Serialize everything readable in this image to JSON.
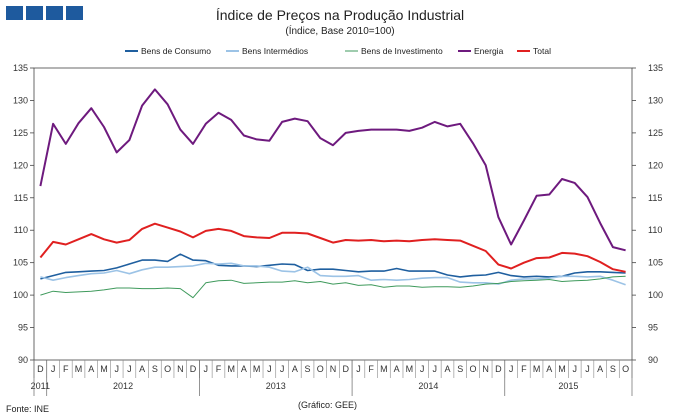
{
  "chart_data": {
    "type": "line",
    "title": "Índice de Preços na Produção Industrial",
    "subtitle": "(Índice, Base 2010=100)",
    "ylim": [
      90,
      135
    ],
    "yticks": [
      90,
      95,
      100,
      105,
      110,
      115,
      120,
      125,
      130,
      135
    ],
    "x_months": [
      "D",
      "J",
      "F",
      "M",
      "A",
      "M",
      "J",
      "J",
      "A",
      "S",
      "O",
      "N",
      "D",
      "J",
      "F",
      "M",
      "A",
      "M",
      "J",
      "J",
      "A",
      "S",
      "O",
      "N",
      "D",
      "J",
      "F",
      "M",
      "A",
      "M",
      "J",
      "J",
      "A",
      "S",
      "O",
      "N",
      "D",
      "J",
      "F",
      "M",
      "A",
      "M",
      "J",
      "J",
      "A",
      "S",
      "O"
    ],
    "x_years": [
      {
        "label": "2011",
        "start": 0,
        "end": 0
      },
      {
        "label": "2012",
        "start": 1,
        "end": 12
      },
      {
        "label": "2013",
        "start": 13,
        "end": 24
      },
      {
        "label": "2014",
        "start": 25,
        "end": 36
      },
      {
        "label": "2015",
        "start": 37,
        "end": 46
      }
    ],
    "legend_position": "top",
    "grid": false,
    "series": [
      {
        "name": "Bens de Consumo",
        "color": "#1f5f9f",
        "values": [
          102.5,
          103.0,
          103.5,
          103.6,
          103.7,
          103.8,
          104.2,
          104.8,
          105.4,
          105.4,
          105.2,
          106.3,
          105.4,
          105.3,
          104.6,
          104.5,
          104.5,
          104.4,
          104.6,
          104.8,
          104.7,
          103.8,
          104.0,
          104.0,
          103.8,
          103.6,
          103.7,
          103.7,
          104.1,
          103.7,
          103.7,
          103.7,
          103.1,
          102.8,
          103.0,
          103.1,
          103.5,
          103.0,
          102.8,
          102.9,
          102.8,
          102.9,
          103.4,
          103.6,
          103.6,
          103.5,
          103.4
        ]
      },
      {
        "name": "Bens Intermédios",
        "color": "#9cc3e6",
        "values": [
          102.8,
          102.3,
          102.7,
          103.0,
          103.3,
          103.4,
          103.8,
          103.3,
          103.9,
          104.3,
          104.3,
          104.4,
          104.5,
          104.9,
          104.8,
          104.9,
          104.5,
          104.5,
          104.3,
          103.7,
          103.6,
          104.3,
          103.0,
          102.9,
          102.9,
          103.0,
          102.3,
          102.4,
          102.3,
          102.4,
          102.6,
          102.7,
          102.7,
          102.0,
          101.9,
          101.9,
          101.7,
          102.3,
          102.5,
          102.5,
          102.6,
          102.9,
          102.9,
          102.8,
          102.9,
          102.3,
          101.6
        ]
      },
      {
        "name": "Bens de Investimento",
        "color": "#3f9a5c",
        "values": [
          100.0,
          100.6,
          100.4,
          100.5,
          100.6,
          100.8,
          101.1,
          101.1,
          101.0,
          101.0,
          101.1,
          101.0,
          99.6,
          101.9,
          102.2,
          102.3,
          101.8,
          101.9,
          102.0,
          102.0,
          102.2,
          101.9,
          102.1,
          101.7,
          101.9,
          101.5,
          101.6,
          101.2,
          101.4,
          101.4,
          101.2,
          101.3,
          101.3,
          101.2,
          101.4,
          101.7,
          101.8,
          102.1,
          102.2,
          102.3,
          102.4,
          102.1,
          102.2,
          102.3,
          102.5,
          102.8,
          102.9
        ]
      },
      {
        "name": "Energia",
        "color": "#6e1a7e",
        "values": [
          116.8,
          126.4,
          123.3,
          126.5,
          128.8,
          125.9,
          122.0,
          123.9,
          129.2,
          131.7,
          129.4,
          125.5,
          123.3,
          126.4,
          128.1,
          127.0,
          124.6,
          124.0,
          123.8,
          126.7,
          127.2,
          126.8,
          124.2,
          123.1,
          125.0,
          125.3,
          125.5,
          125.5,
          125.5,
          125.3,
          125.8,
          126.7,
          126.0,
          126.4,
          123.4,
          120.0,
          112.0,
          107.8,
          111.5,
          115.3,
          115.5,
          117.9,
          117.3,
          115.1,
          111.1,
          107.4,
          106.9
        ]
      },
      {
        "name": "Total",
        "color": "#e02020",
        "values": [
          105.8,
          108.2,
          107.8,
          108.6,
          109.4,
          108.6,
          108.1,
          108.5,
          110.2,
          111.0,
          110.4,
          109.8,
          108.9,
          109.9,
          110.2,
          109.9,
          109.1,
          108.9,
          108.8,
          109.6,
          109.6,
          109.5,
          108.8,
          108.1,
          108.5,
          108.4,
          108.5,
          108.3,
          108.4,
          108.3,
          108.5,
          108.6,
          108.5,
          108.4,
          107.6,
          106.8,
          104.7,
          104.1,
          105.0,
          105.7,
          105.8,
          106.5,
          106.4,
          106.0,
          105.1,
          104.0,
          103.6
        ]
      }
    ]
  },
  "footer": {
    "source": "Fonte: INE",
    "credit": "(Gráfico: GEE)"
  }
}
